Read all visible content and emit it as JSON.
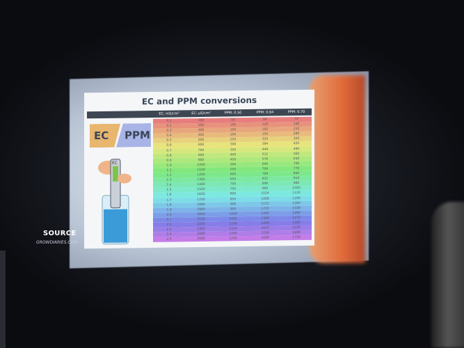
{
  "slide": {
    "title": "EC and PPM conversions",
    "logo_left": "EC",
    "logo_right": "PPM",
    "meter_label": "EC",
    "headers": [
      "EC: mS/cm²",
      "EC: µS/cm²",
      "PPM: 0.50",
      "PPM: 0.64",
      "PPM: 0.70"
    ],
    "rows": [
      [
        "0.1",
        "100",
        "50",
        "64",
        "70"
      ],
      [
        "0.2",
        "200",
        "100",
        "128",
        "140"
      ],
      [
        "0.3",
        "300",
        "150",
        "192",
        "210"
      ],
      [
        "0.4",
        "400",
        "200",
        "256",
        "280"
      ],
      [
        "0.5",
        "500",
        "250",
        "320",
        "350"
      ],
      [
        "0.6",
        "600",
        "300",
        "384",
        "420"
      ],
      [
        "0.7",
        "700",
        "350",
        "448",
        "490"
      ],
      [
        "0.8",
        "800",
        "400",
        "512",
        "560"
      ],
      [
        "0.9",
        "900",
        "450",
        "576",
        "630"
      ],
      [
        "1.0",
        "1000",
        "500",
        "640",
        "700"
      ],
      [
        "1.1",
        "1100",
        "550",
        "704",
        "770"
      ],
      [
        "1.2",
        "1200",
        "600",
        "768",
        "840"
      ],
      [
        "1.3",
        "1300",
        "650",
        "832",
        "910"
      ],
      [
        "1.4",
        "1400",
        "700",
        "896",
        "980"
      ],
      [
        "1.5",
        "1500",
        "750",
        "960",
        "1050"
      ],
      [
        "1.6",
        "1600",
        "800",
        "1024",
        "1120"
      ],
      [
        "1.7",
        "1700",
        "850",
        "1088",
        "1190"
      ],
      [
        "1.8",
        "1800",
        "900",
        "1152",
        "1260"
      ],
      [
        "1.9",
        "1900",
        "950",
        "1216",
        "1330"
      ],
      [
        "2.0",
        "2000",
        "1000",
        "1280",
        "1400"
      ],
      [
        "2.1",
        "2100",
        "1050",
        "1344",
        "1470"
      ],
      [
        "2.2",
        "2200",
        "1100",
        "1408",
        "1540"
      ],
      [
        "2.3",
        "2300",
        "1150",
        "1472",
        "1610"
      ],
      [
        "2.4",
        "2400",
        "1200",
        "1536",
        "1680"
      ],
      [
        "2.5",
        "2500",
        "1250",
        "1600",
        "1750"
      ]
    ]
  },
  "source": {
    "label": "SOURCE",
    "url": "GROWDIARIES.COM"
  }
}
